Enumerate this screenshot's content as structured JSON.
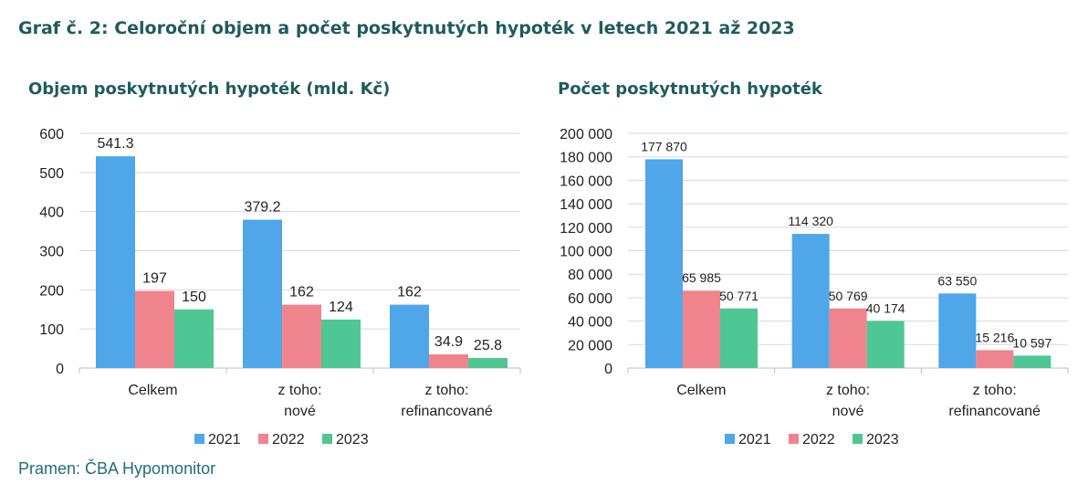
{
  "figure_title": "Graf č. 2: Celoroční objem a počet poskytnutých hypoték v letech 2021 až 2023",
  "source": "Pramen: ČBA Hypomonitor",
  "colors": {
    "2021": "#4fa6e8",
    "2022": "#f0848d",
    "2023": "#4ec795",
    "title": "#1f5c5c",
    "source": "#1f6f7a"
  },
  "chart_data": [
    {
      "type": "bar",
      "title": "Objem poskytnutých hypoték (mld. Kč)",
      "categories": [
        [
          "Celkem"
        ],
        [
          "z toho:",
          "nové"
        ],
        [
          "z toho:",
          "refinancované"
        ]
      ],
      "series": [
        {
          "name": "2021",
          "values": [
            541.3,
            379.2,
            162
          ],
          "labels": [
            "541.3",
            "379.2",
            "162"
          ]
        },
        {
          "name": "2022",
          "values": [
            197,
            162,
            34.9
          ],
          "labels": [
            "197",
            "162",
            "34.9"
          ]
        },
        {
          "name": "2023",
          "values": [
            150,
            124,
            25.8
          ],
          "labels": [
            "150",
            "124",
            "25.8"
          ]
        }
      ],
      "ylim": [
        0,
        600
      ],
      "yticks": [
        0,
        100,
        200,
        300,
        400,
        500,
        600
      ],
      "ytick_labels": [
        "0",
        "100",
        "200",
        "300",
        "400",
        "500",
        "600"
      ],
      "grid": true,
      "legend": "bottom"
    },
    {
      "type": "bar",
      "title": "Počet poskytnutých hypoték",
      "categories": [
        [
          "Celkem"
        ],
        [
          "z toho:",
          "nové"
        ],
        [
          "z toho:",
          "refinancované"
        ]
      ],
      "series": [
        {
          "name": "2021",
          "values": [
            177870,
            114320,
            63550
          ],
          "labels": [
            "177 870",
            "114 320",
            "63 550"
          ]
        },
        {
          "name": "2022",
          "values": [
            65985,
            50769,
            15216
          ],
          "labels": [
            "65 985",
            "50 769",
            "15 216"
          ]
        },
        {
          "name": "2023",
          "values": [
            50771,
            40174,
            10597
          ],
          "labels": [
            "50 771",
            "40 174",
            "10 597"
          ]
        }
      ],
      "ylim": [
        0,
        200000
      ],
      "yticks": [
        0,
        20000,
        40000,
        60000,
        80000,
        100000,
        120000,
        140000,
        160000,
        180000,
        200000
      ],
      "ytick_labels": [
        "0",
        "20 000",
        "40 000",
        "60 000",
        "80 000",
        "100 000",
        "120 000",
        "140 000",
        "160 000",
        "180 000",
        "200 000"
      ],
      "grid": true,
      "legend": "bottom"
    }
  ]
}
